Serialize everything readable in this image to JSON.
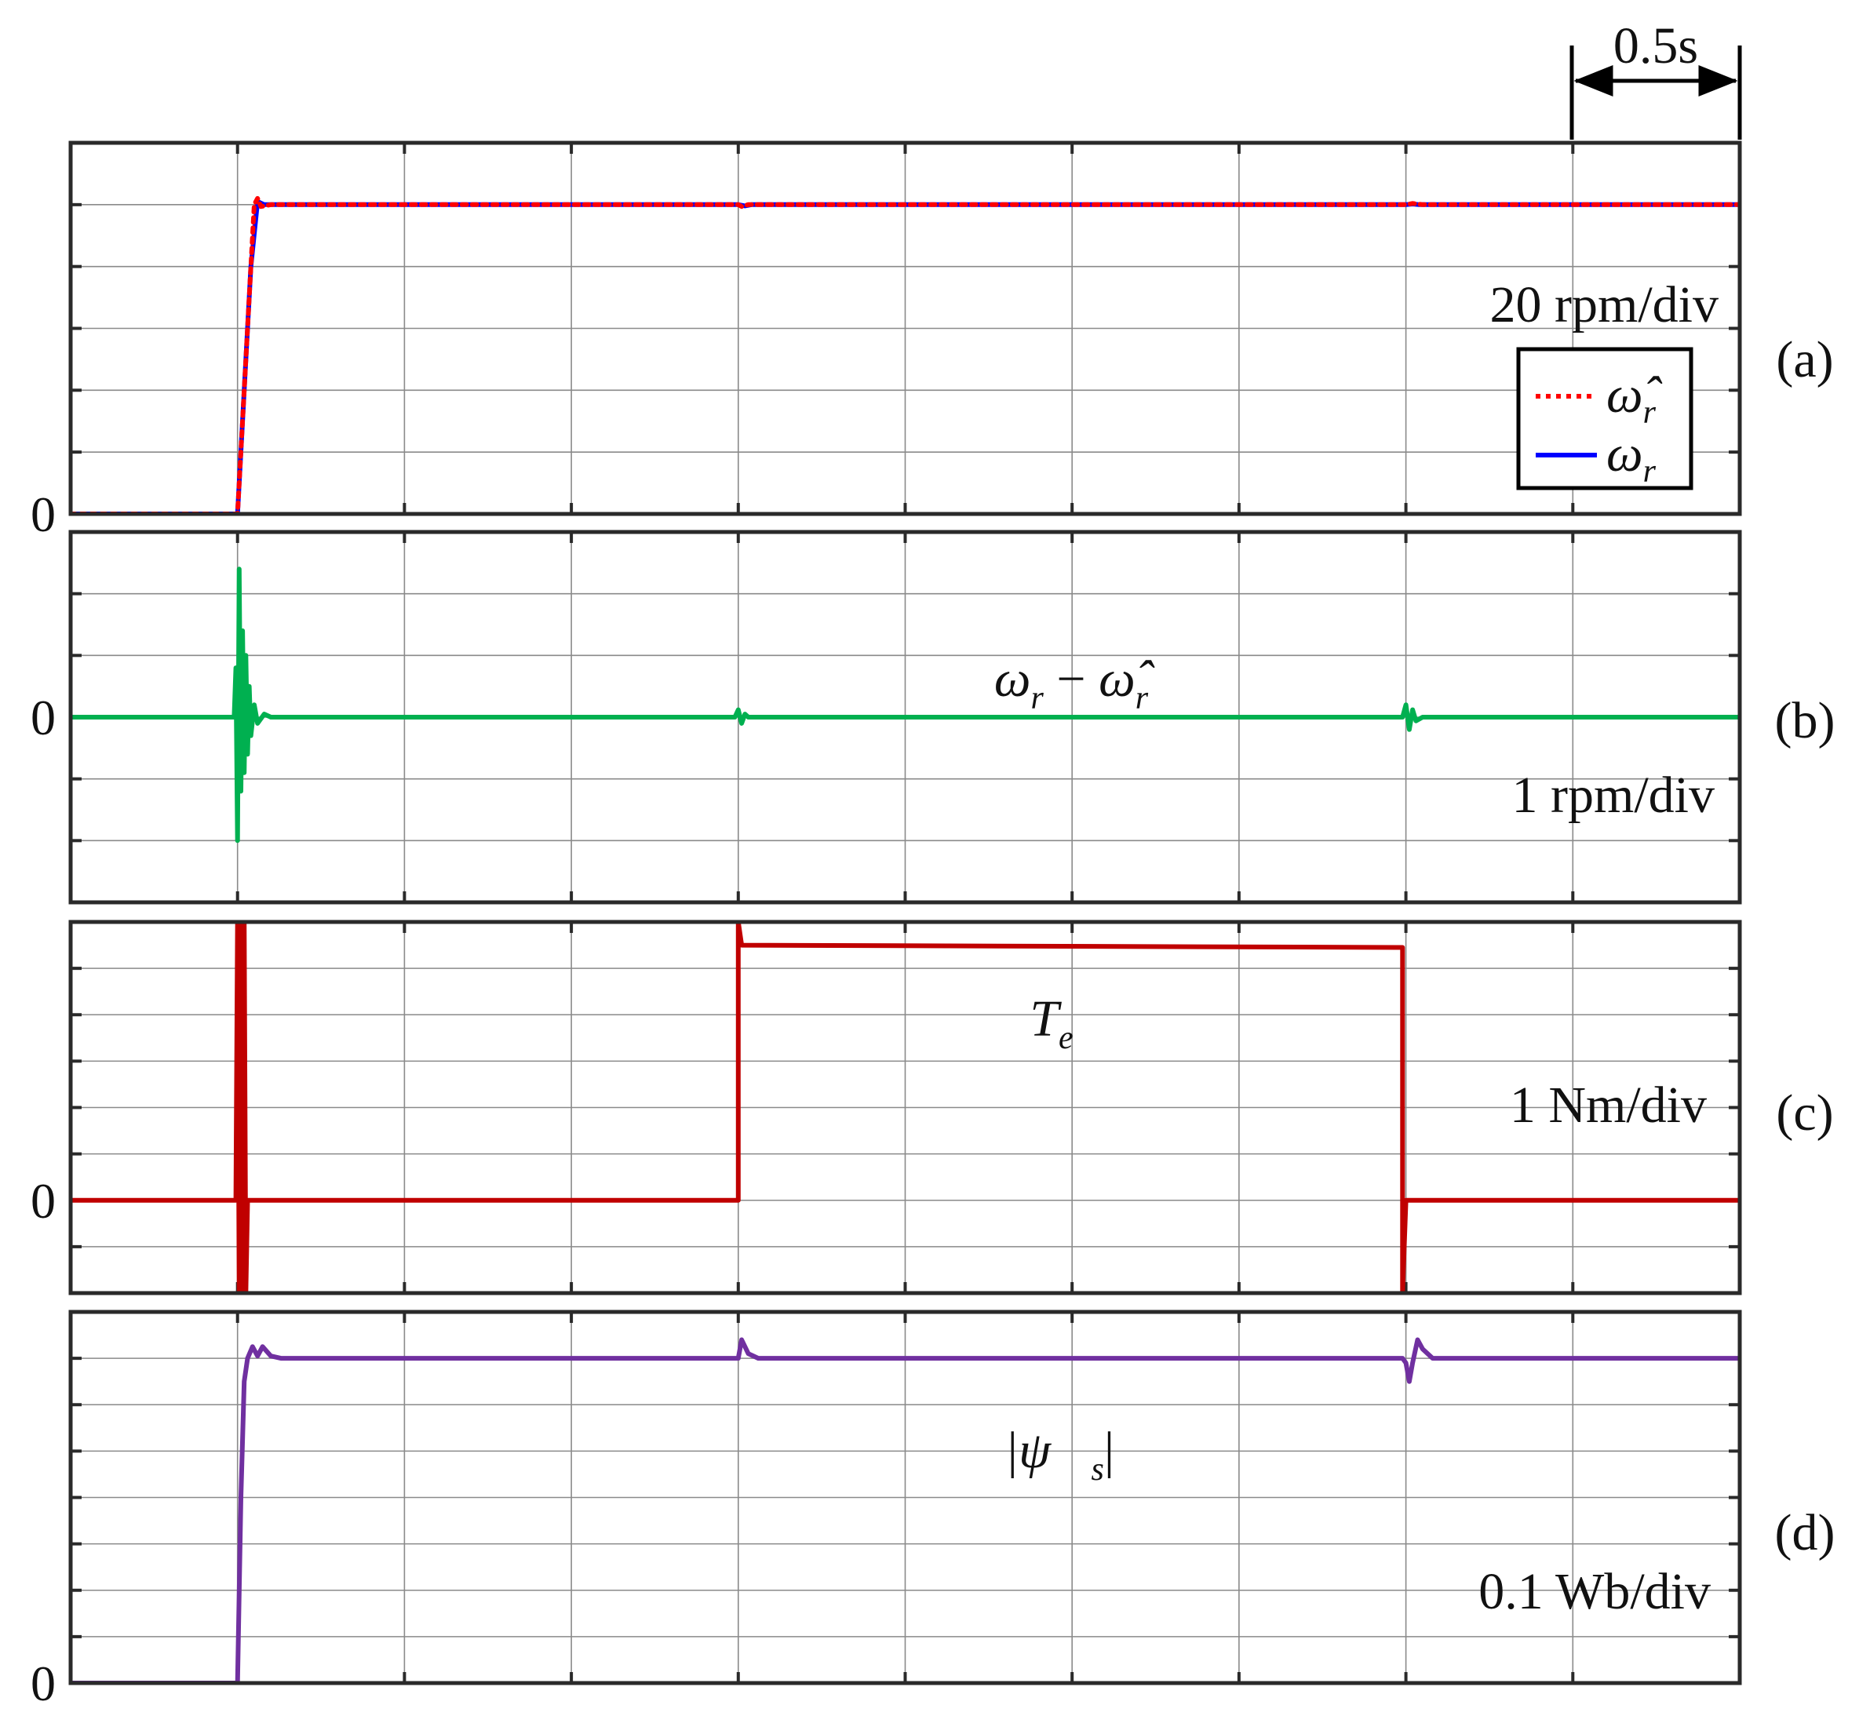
{
  "chart_data": [
    {
      "type": "line",
      "panel_label": "(a)",
      "scale_label": "20 rpm/div",
      "zero_label": "0",
      "y_divisions": 6,
      "y_zero_div": 0,
      "x_range_s": [
        0,
        5
      ],
      "x_divisions": 10,
      "legend": "bottom-right",
      "series": [
        {
          "name": "ω̂_r",
          "legend_main": "ω̂",
          "legend_sub": "r",
          "color": "#ff0000",
          "dash": "dotted",
          "points": [
            [
              0,
              0
            ],
            [
              0.49,
              0
            ],
            [
              0.5,
              0
            ],
            [
              0.52,
              2
            ],
            [
              0.54,
              4
            ],
            [
              0.55,
              5.0
            ],
            [
              0.56,
              5.1
            ],
            [
              0.57,
              4.97
            ],
            [
              0.6,
              5.0
            ],
            [
              2.0,
              5.0
            ],
            [
              2.01,
              4.97
            ],
            [
              2.03,
              5.0
            ],
            [
              4.0,
              5.0
            ],
            [
              4.02,
              5.02
            ],
            [
              4.05,
              5.0
            ],
            [
              5.0,
              5.0
            ]
          ]
        },
        {
          "name": "ω_r",
          "legend_main": "ω",
          "legend_sub": "r",
          "color": "#0000ff",
          "dash": "solid",
          "points": [
            [
              0,
              0
            ],
            [
              0.5,
              0
            ],
            [
              0.52,
              2
            ],
            [
              0.54,
              4
            ],
            [
              0.56,
              5.05
            ],
            [
              0.58,
              5.0
            ],
            [
              2.0,
              5.0
            ],
            [
              2.02,
              4.98
            ],
            [
              2.04,
              5.0
            ],
            [
              4.0,
              5.0
            ],
            [
              4.02,
              5.01
            ],
            [
              4.04,
              5.0
            ],
            [
              5.0,
              5.0
            ]
          ]
        }
      ]
    },
    {
      "type": "line",
      "panel_label": "(b)",
      "scale_label": "1 rpm/div",
      "zero_label": "0",
      "y_divisions": 6,
      "y_zero_div": 3,
      "x_range_s": [
        0,
        5
      ],
      "x_divisions": 10,
      "annotation": {
        "main1": "ω",
        "sub1": "r",
        "op": " − ",
        "main2": "ω̂",
        "sub2": "r"
      },
      "series": [
        {
          "name": "ω_r − ω̂_r",
          "color": "#00b050",
          "dash": "solid",
          "points": [
            [
              0,
              0
            ],
            [
              0.49,
              0
            ],
            [
              0.495,
              0.8
            ],
            [
              0.5,
              -2.0
            ],
            [
              0.505,
              2.4
            ],
            [
              0.51,
              -1.2
            ],
            [
              0.515,
              1.4
            ],
            [
              0.52,
              -0.9
            ],
            [
              0.525,
              1.0
            ],
            [
              0.53,
              -0.6
            ],
            [
              0.535,
              0.5
            ],
            [
              0.54,
              -0.3
            ],
            [
              0.55,
              0.2
            ],
            [
              0.56,
              -0.1
            ],
            [
              0.58,
              0.05
            ],
            [
              0.6,
              0
            ],
            [
              1.99,
              0
            ],
            [
              2.0,
              0.12
            ],
            [
              2.01,
              -0.1
            ],
            [
              2.02,
              0.05
            ],
            [
              2.03,
              0
            ],
            [
              3.99,
              0
            ],
            [
              4.0,
              0.2
            ],
            [
              4.01,
              -0.2
            ],
            [
              4.02,
              0.12
            ],
            [
              4.03,
              -0.06
            ],
            [
              4.05,
              0
            ],
            [
              5.0,
              0
            ]
          ]
        }
      ]
    },
    {
      "type": "line",
      "panel_label": "(c)",
      "scale_label": "1 Nm/div",
      "zero_label": "0",
      "y_divisions": 8,
      "y_zero_div": 2,
      "x_range_s": [
        0,
        5
      ],
      "x_divisions": 10,
      "annotation": {
        "main1": "T",
        "sub1": "e"
      },
      "series": [
        {
          "name": "T_e",
          "color": "#c00000",
          "dash": "solid",
          "points": [
            [
              0,
              0
            ],
            [
              0.495,
              0
            ],
            [
              0.5,
              6
            ],
            [
              0.505,
              -2
            ],
            [
              0.51,
              6
            ],
            [
              0.515,
              -2
            ],
            [
              0.52,
              6
            ],
            [
              0.525,
              -2
            ],
            [
              0.53,
              0
            ],
            [
              2.0,
              0
            ],
            [
              2.0,
              6
            ],
            [
              2.01,
              5.5
            ],
            [
              3.99,
              5.45
            ],
            [
              3.99,
              -2
            ],
            [
              4.0,
              0
            ],
            [
              5.0,
              0
            ]
          ]
        }
      ]
    },
    {
      "type": "line",
      "panel_label": "(d)",
      "scale_label": "0.1 Wb/div",
      "zero_label": "0",
      "y_divisions": 8,
      "y_zero_div": 0,
      "x_range_s": [
        0,
        5
      ],
      "x_divisions": 10,
      "annotation": {
        "main1": "|ψ⃗",
        "sub1": "s",
        "close": "|"
      },
      "series": [
        {
          "name": "|ψ_s|",
          "color": "#7030a0",
          "dash": "solid",
          "points": [
            [
              0,
              0
            ],
            [
              0.5,
              0
            ],
            [
              0.51,
              4
            ],
            [
              0.52,
              6.5
            ],
            [
              0.53,
              7.0
            ],
            [
              0.545,
              7.25
            ],
            [
              0.56,
              7.05
            ],
            [
              0.575,
              7.25
            ],
            [
              0.6,
              7.05
            ],
            [
              0.63,
              7.0
            ],
            [
              2.0,
              7.0
            ],
            [
              2.01,
              7.4
            ],
            [
              2.03,
              7.1
            ],
            [
              2.06,
              7.0
            ],
            [
              3.99,
              7.0
            ],
            [
              4.0,
              6.9
            ],
            [
              4.01,
              6.5
            ],
            [
              4.02,
              6.9
            ],
            [
              4.035,
              7.4
            ],
            [
              4.05,
              7.2
            ],
            [
              4.08,
              7.0
            ],
            [
              5.0,
              7.0
            ]
          ]
        }
      ]
    }
  ],
  "time_marker": {
    "label": "0.5s"
  }
}
